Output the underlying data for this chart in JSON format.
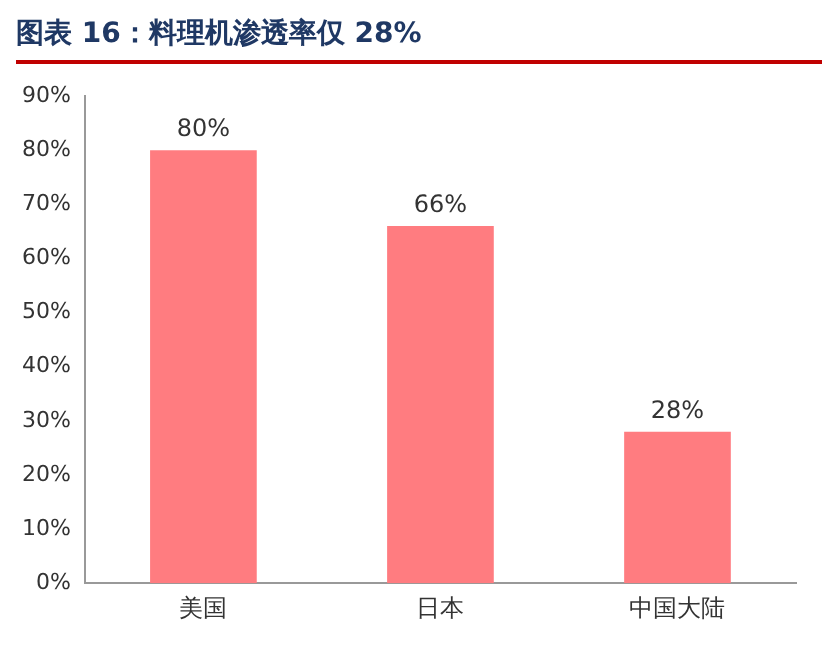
{
  "chart_data": {
    "type": "bar",
    "title": "图表 16：料理机渗透率仅 28%",
    "categories": [
      "美国",
      "日本",
      "中国大陆"
    ],
    "values": [
      80,
      66,
      28
    ],
    "value_labels": [
      "80%",
      "66%",
      "28%"
    ],
    "color": "#ff7c80",
    "ylim": [
      0,
      90
    ],
    "yticks": [
      {
        "value": 0,
        "label": "0%"
      },
      {
        "value": 10,
        "label": "10%"
      },
      {
        "value": 20,
        "label": "20%"
      },
      {
        "value": 30,
        "label": "30%"
      },
      {
        "value": 40,
        "label": "40%"
      },
      {
        "value": 50,
        "label": "50%"
      },
      {
        "value": 60,
        "label": "60%"
      },
      {
        "value": 70,
        "label": "70%"
      },
      {
        "value": 80,
        "label": "80%"
      },
      {
        "value": 90,
        "label": "90%"
      }
    ],
    "grid": false,
    "legend": false
  }
}
